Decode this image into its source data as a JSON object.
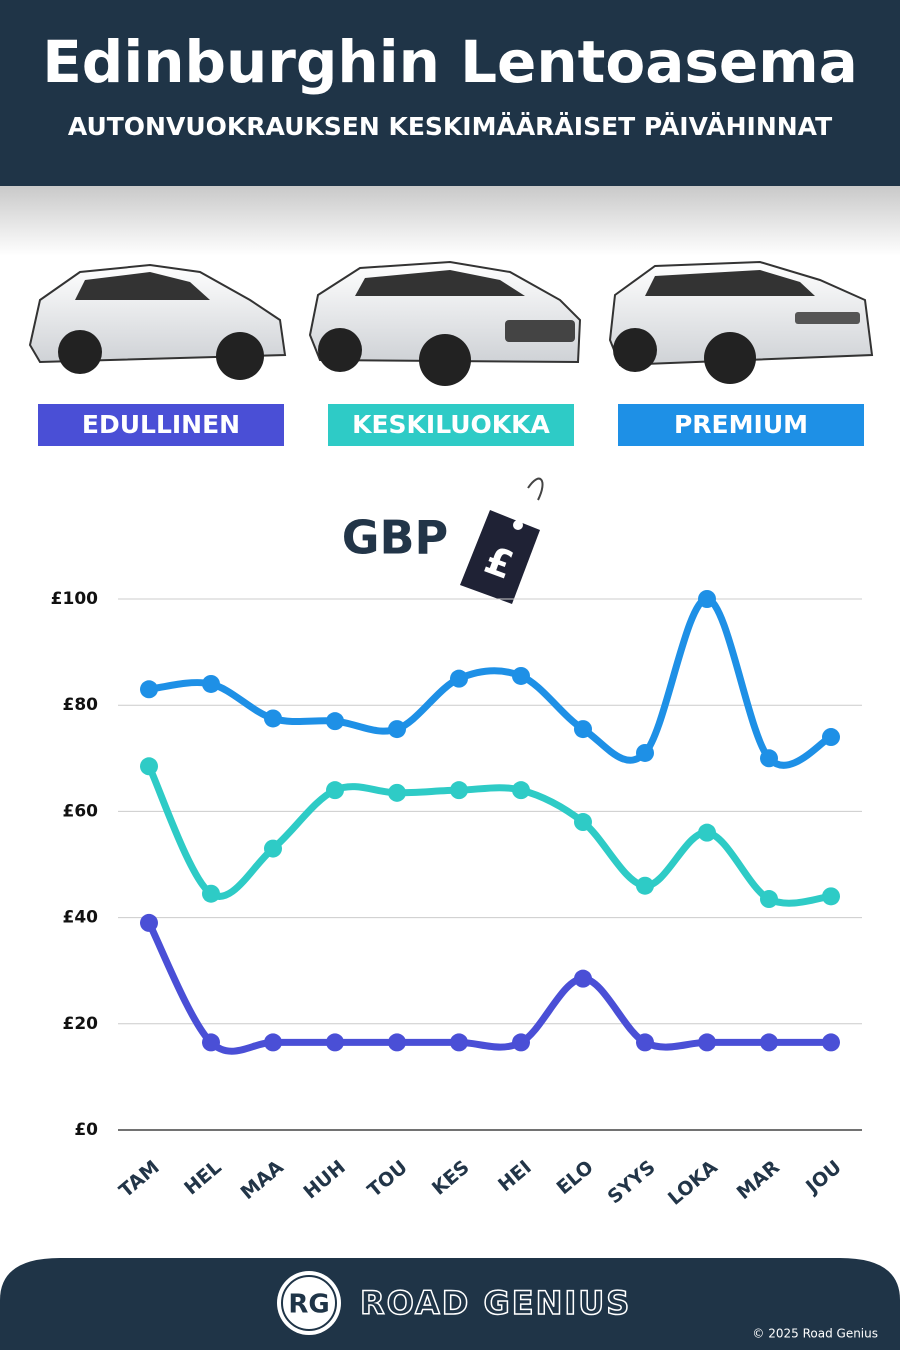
{
  "header": {
    "title": "Edinburghin Lentoasema",
    "subtitle": "AUTONVUOKRAUKSEN KESKIMÄÄRÄISET PÄIVÄHINNAT"
  },
  "chart_data": {
    "type": "line",
    "annotations": {
      "label": "GBP",
      "symbol": "£"
    },
    "categories": [
      "TAM",
      "HEL",
      "MAA",
      "HUH",
      "TOU",
      "KES",
      "HEI",
      "ELO",
      "SYYS",
      "LOKA",
      "MAR",
      "JOU"
    ],
    "series": [
      {
        "name": "EDULLINEN",
        "color": "#4a4fd6",
        "values": [
          39,
          16.5,
          16.5,
          16.5,
          16.5,
          16.5,
          16.5,
          28.5,
          16.5,
          16.5,
          16.5,
          16.5
        ]
      },
      {
        "name": "KESKILUOKKA",
        "color": "#2ecbc6",
        "values": [
          68.5,
          44.5,
          53,
          64,
          63.5,
          64,
          64,
          58,
          46,
          56,
          43.5,
          44
        ]
      },
      {
        "name": "PREMIUM",
        "color": "#1e90e6",
        "values": [
          83,
          84,
          77.5,
          77,
          75.5,
          85,
          85.5,
          75.5,
          71,
          100,
          70,
          74
        ]
      }
    ],
    "ylim": [
      0,
      100
    ],
    "yticks": [
      {
        "value": 0,
        "label": "£0"
      },
      {
        "value": 20,
        "label": "£20"
      },
      {
        "value": 40,
        "label": "£40"
      },
      {
        "value": 60,
        "label": "£60"
      },
      {
        "value": 80,
        "label": "£80"
      },
      {
        "value": 100,
        "label": "£100"
      }
    ],
    "grid": true
  },
  "footer": {
    "initials": "RG",
    "brand": "ROAD GENIUS",
    "copyright": "© 2025 Road Genius"
  }
}
